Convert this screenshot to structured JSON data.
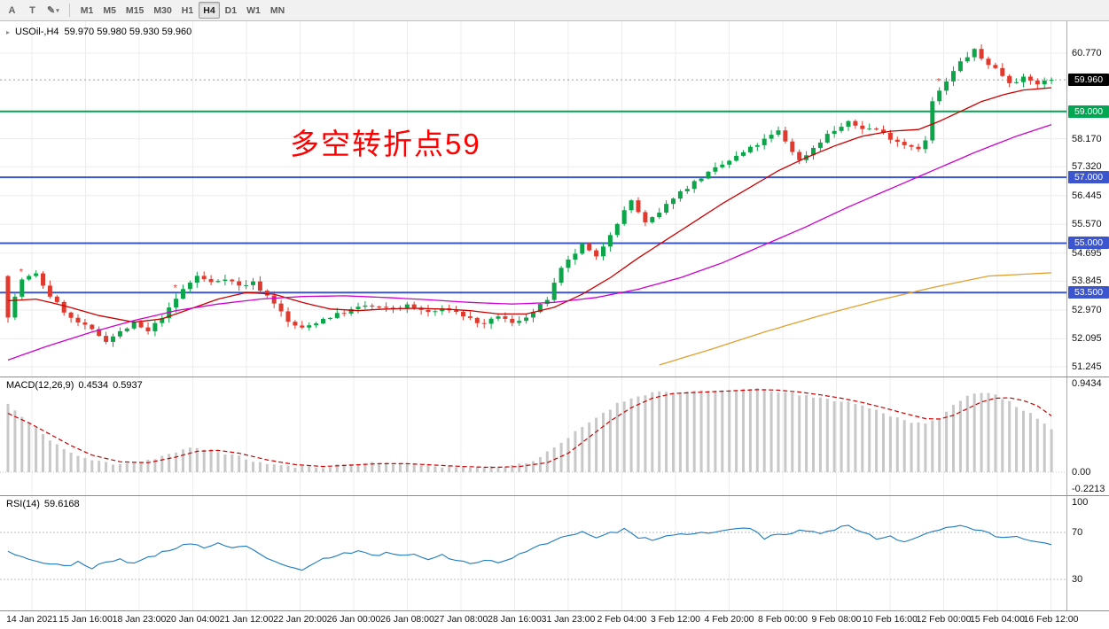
{
  "toolbar": {
    "tools": [
      {
        "label": "A",
        "name": "cursor-tool"
      },
      {
        "label": "T",
        "name": "text-tool"
      },
      {
        "label": "✎",
        "name": "draw-tool",
        "has_caret": true
      }
    ],
    "timeframes": [
      "M1",
      "M5",
      "M15",
      "M30",
      "H1",
      "H4",
      "D1",
      "W1",
      "MN"
    ],
    "active_timeframe": "H4"
  },
  "chart": {
    "symbol_period": "USOil-,H4",
    "ohlc": "59.970 59.980 59.930 59.960",
    "annotation": "多空转折点59",
    "hlines": [
      {
        "value": 59.0,
        "color": "#00a651",
        "label": "59.000"
      },
      {
        "value": 57.0,
        "color": "#3b55ce",
        "label": "57.000"
      },
      {
        "value": 55.0,
        "color": "#3b55ce",
        "label": "55.000"
      },
      {
        "value": 53.5,
        "color": "#3b55ce",
        "label": "53.500"
      }
    ],
    "current_price": {
      "value": 59.96,
      "label": "59.960"
    }
  },
  "price_axis": {
    "ticks": [
      {
        "label": "60.770",
        "value": 60.77
      },
      {
        "label": "58.170",
        "value": 58.17
      },
      {
        "label": "57.320",
        "value": 57.32
      },
      {
        "label": "56.445",
        "value": 56.445
      },
      {
        "label": "55.570",
        "value": 55.57
      },
      {
        "label": "54.695",
        "value": 54.695
      },
      {
        "label": "53.845",
        "value": 53.845
      },
      {
        "label": "52.970",
        "value": 52.97
      },
      {
        "label": "52.095",
        "value": 52.095
      },
      {
        "label": "51.245",
        "value": 51.245
      }
    ]
  },
  "macd": {
    "label": "MACD(12,26,9)",
    "value_main": "0.4534",
    "value_signal": "0.5937",
    "axis": [
      {
        "label": "0.9434",
        "value": 0.9434
      },
      {
        "label": "0.00",
        "value": 0
      },
      {
        "label": "-0.2213",
        "value": -0.2213
      }
    ]
  },
  "rsi": {
    "label": "RSI(14)",
    "value": "59.6168",
    "axis": [
      {
        "label": "100",
        "value": 100
      },
      {
        "label": "70",
        "value": 70
      },
      {
        "label": "30",
        "value": 30
      }
    ],
    "levels": [
      70,
      30
    ]
  },
  "time_axis": {
    "labels": [
      "14 Jan 2021",
      "15 Jan 16:00",
      "18 Jan 23:00",
      "20 Jan 04:00",
      "21 Jan 12:00",
      "22 Jan 20:00",
      "26 Jan 00:00",
      "26 Jan 08:00",
      "27 Jan 08:00",
      "28 Jan 16:00",
      "31 Jan 23:00",
      "2 Feb 04:00",
      "3 Feb 12:00",
      "4 Feb 20:00",
      "8 Feb 00:00",
      "9 Feb 08:00",
      "10 Feb 16:00",
      "12 Feb 00:00",
      "15 Feb 04:00",
      "16 Feb 12:00"
    ]
  },
  "colors": {
    "bull": "#0ca54a",
    "bear": "#e0392d",
    "ma_fast": "#cc0000",
    "ma_mid": "#cf00cf",
    "ma_slow": "#e0a030",
    "macd_hist": "#c8c8c8",
    "macd_signal": "#cc0000",
    "rsi_line": "#1c7ac1",
    "grid": "#ececec",
    "axis_box_current": "#000000",
    "marker": "#e0392d",
    "annotation": "#ff0000"
  },
  "chart_data": {
    "type": "candlestick",
    "symbol": "USOil",
    "period": "H4",
    "ohlc_current": {
      "open": 59.97,
      "high": 59.98,
      "low": 59.93,
      "close": 59.96
    },
    "price_range": [
      51.245,
      60.77
    ],
    "candle_count": 150,
    "open_start": 54.0,
    "close_anchors": [
      [
        0,
        52.8
      ],
      [
        2,
        53.9
      ],
      [
        4,
        54.05
      ],
      [
        6,
        53.4
      ],
      [
        9,
        52.7
      ],
      [
        12,
        52.35
      ],
      [
        14,
        52.05
      ],
      [
        16,
        52.3
      ],
      [
        18,
        52.55
      ],
      [
        20,
        52.3
      ],
      [
        23,
        53.0
      ],
      [
        25,
        53.6
      ],
      [
        27,
        54.0
      ],
      [
        29,
        53.8
      ],
      [
        31,
        53.95
      ],
      [
        33,
        53.7
      ],
      [
        35,
        53.8
      ],
      [
        38,
        53.2
      ],
      [
        40,
        52.6
      ],
      [
        42,
        52.4
      ],
      [
        45,
        52.7
      ],
      [
        48,
        52.9
      ],
      [
        51,
        53.1
      ],
      [
        54,
        53.0
      ],
      [
        57,
        53.1
      ],
      [
        60,
        52.9
      ],
      [
        63,
        53.0
      ],
      [
        66,
        52.7
      ],
      [
        68,
        52.5
      ],
      [
        70,
        52.8
      ],
      [
        72,
        52.55
      ],
      [
        75,
        52.9
      ],
      [
        77,
        53.3
      ],
      [
        79,
        54.2
      ],
      [
        82,
        54.95
      ],
      [
        84,
        54.55
      ],
      [
        86,
        55.3
      ],
      [
        89,
        56.3
      ],
      [
        91,
        55.6
      ],
      [
        93,
        55.9
      ],
      [
        95,
        56.4
      ],
      [
        99,
        57.0
      ],
      [
        103,
        57.5
      ],
      [
        107,
        58.0
      ],
      [
        110,
        58.4
      ],
      [
        113,
        57.5
      ],
      [
        115,
        57.9
      ],
      [
        117,
        58.3
      ],
      [
        120,
        58.65
      ],
      [
        122,
        58.5
      ],
      [
        124,
        58.45
      ],
      [
        126,
        58.2
      ],
      [
        128,
        58.0
      ],
      [
        130,
        57.9
      ],
      [
        131,
        58.1
      ],
      [
        132,
        59.3
      ],
      [
        134,
        59.9
      ],
      [
        136,
        60.5
      ],
      [
        138,
        60.85
      ],
      [
        139,
        60.6
      ],
      [
        141,
        60.3
      ],
      [
        143,
        59.9
      ],
      [
        145,
        60.0
      ],
      [
        147,
        59.85
      ],
      [
        149,
        59.96
      ]
    ],
    "ma_fast_anchors": [
      [
        0,
        53.25
      ],
      [
        4,
        53.3
      ],
      [
        8,
        53.1
      ],
      [
        13,
        52.8
      ],
      [
        18,
        52.6
      ],
      [
        22,
        52.7
      ],
      [
        26,
        53.0
      ],
      [
        30,
        53.3
      ],
      [
        34,
        53.5
      ],
      [
        38,
        53.45
      ],
      [
        42,
        53.2
      ],
      [
        46,
        53.0
      ],
      [
        50,
        52.95
      ],
      [
        54,
        53.0
      ],
      [
        58,
        53.02
      ],
      [
        62,
        53.0
      ],
      [
        66,
        52.95
      ],
      [
        70,
        52.85
      ],
      [
        74,
        52.85
      ],
      [
        78,
        53.05
      ],
      [
        82,
        53.45
      ],
      [
        86,
        53.95
      ],
      [
        90,
        54.55
      ],
      [
        94,
        55.1
      ],
      [
        98,
        55.65
      ],
      [
        102,
        56.2
      ],
      [
        106,
        56.7
      ],
      [
        110,
        57.2
      ],
      [
        114,
        57.6
      ],
      [
        118,
        57.95
      ],
      [
        122,
        58.25
      ],
      [
        126,
        58.4
      ],
      [
        130,
        58.45
      ],
      [
        133,
        58.7
      ],
      [
        136,
        59.0
      ],
      [
        139,
        59.3
      ],
      [
        142,
        59.5
      ],
      [
        145,
        59.65
      ],
      [
        149,
        59.72
      ]
    ],
    "ma_mid_anchors": [
      [
        0,
        51.45
      ],
      [
        6,
        51.9
      ],
      [
        12,
        52.3
      ],
      [
        18,
        52.65
      ],
      [
        24,
        52.95
      ],
      [
        30,
        53.15
      ],
      [
        36,
        53.3
      ],
      [
        42,
        53.38
      ],
      [
        48,
        53.4
      ],
      [
        54,
        53.35
      ],
      [
        60,
        53.28
      ],
      [
        66,
        53.2
      ],
      [
        72,
        53.15
      ],
      [
        78,
        53.2
      ],
      [
        84,
        53.35
      ],
      [
        90,
        53.6
      ],
      [
        96,
        53.95
      ],
      [
        102,
        54.4
      ],
      [
        108,
        54.95
      ],
      [
        114,
        55.5
      ],
      [
        120,
        56.1
      ],
      [
        126,
        56.65
      ],
      [
        132,
        57.2
      ],
      [
        138,
        57.75
      ],
      [
        144,
        58.25
      ],
      [
        149,
        58.6
      ]
    ],
    "ma_slow_anchors": [
      [
        93,
        51.3
      ],
      [
        100,
        51.75
      ],
      [
        108,
        52.3
      ],
      [
        116,
        52.8
      ],
      [
        124,
        53.25
      ],
      [
        132,
        53.65
      ],
      [
        140,
        54.0
      ],
      [
        149,
        54.1
      ]
    ],
    "markers": [
      {
        "index": 2
      },
      {
        "index": 24
      },
      {
        "index": 133
      }
    ],
    "macd_range": [
      -0.2213,
      0.9434
    ],
    "macd_hist_anchors": [
      [
        0,
        0.72
      ],
      [
        2,
        0.58
      ],
      [
        5,
        0.4
      ],
      [
        8,
        0.24
      ],
      [
        11,
        0.14
      ],
      [
        15,
        0.09
      ],
      [
        19,
        0.11
      ],
      [
        23,
        0.19
      ],
      [
        26,
        0.25
      ],
      [
        29,
        0.24
      ],
      [
        32,
        0.18
      ],
      [
        36,
        0.1
      ],
      [
        40,
        0.06
      ],
      [
        44,
        0.05
      ],
      [
        48,
        0.08
      ],
      [
        52,
        0.1
      ],
      [
        56,
        0.09
      ],
      [
        60,
        0.07
      ],
      [
        64,
        0.055
      ],
      [
        68,
        0.05
      ],
      [
        72,
        0.07
      ],
      [
        75,
        0.12
      ],
      [
        78,
        0.25
      ],
      [
        81,
        0.42
      ],
      [
        84,
        0.58
      ],
      [
        87,
        0.72
      ],
      [
        90,
        0.81
      ],
      [
        93,
        0.85
      ],
      [
        96,
        0.84
      ],
      [
        99,
        0.85
      ],
      [
        102,
        0.86
      ],
      [
        105,
        0.875
      ],
      [
        108,
        0.87
      ],
      [
        111,
        0.84
      ],
      [
        114,
        0.8
      ],
      [
        117,
        0.77
      ],
      [
        120,
        0.74
      ],
      [
        123,
        0.68
      ],
      [
        126,
        0.6
      ],
      [
        129,
        0.53
      ],
      [
        131,
        0.5
      ],
      [
        133,
        0.58
      ],
      [
        135,
        0.7
      ],
      [
        137,
        0.8
      ],
      [
        139,
        0.85
      ],
      [
        141,
        0.82
      ],
      [
        143,
        0.74
      ],
      [
        145,
        0.66
      ],
      [
        147,
        0.56
      ],
      [
        149,
        0.4534
      ]
    ],
    "macd_signal_anchors": [
      [
        0,
        0.62
      ],
      [
        3,
        0.52
      ],
      [
        6,
        0.4
      ],
      [
        9,
        0.28
      ],
      [
        12,
        0.18
      ],
      [
        16,
        0.11
      ],
      [
        20,
        0.1
      ],
      [
        24,
        0.16
      ],
      [
        27,
        0.22
      ],
      [
        30,
        0.23
      ],
      [
        33,
        0.2
      ],
      [
        37,
        0.13
      ],
      [
        41,
        0.08
      ],
      [
        45,
        0.06
      ],
      [
        49,
        0.075
      ],
      [
        53,
        0.09
      ],
      [
        57,
        0.09
      ],
      [
        61,
        0.075
      ],
      [
        65,
        0.06
      ],
      [
        69,
        0.05
      ],
      [
        73,
        0.06
      ],
      [
        77,
        0.1
      ],
      [
        80,
        0.2
      ],
      [
        83,
        0.37
      ],
      [
        86,
        0.54
      ],
      [
        89,
        0.68
      ],
      [
        92,
        0.78
      ],
      [
        95,
        0.83
      ],
      [
        98,
        0.84
      ],
      [
        101,
        0.85
      ],
      [
        104,
        0.86
      ],
      [
        107,
        0.87
      ],
      [
        110,
        0.865
      ],
      [
        113,
        0.845
      ],
      [
        116,
        0.815
      ],
      [
        119,
        0.78
      ],
      [
        122,
        0.735
      ],
      [
        125,
        0.68
      ],
      [
        128,
        0.62
      ],
      [
        131,
        0.565
      ],
      [
        133,
        0.56
      ],
      [
        135,
        0.6
      ],
      [
        137,
        0.67
      ],
      [
        139,
        0.74
      ],
      [
        141,
        0.78
      ],
      [
        143,
        0.785
      ],
      [
        145,
        0.755
      ],
      [
        147,
        0.7
      ],
      [
        149,
        0.5937
      ]
    ],
    "rsi_current": 59.6168,
    "rsi_anchors": [
      [
        0,
        55
      ],
      [
        2,
        49
      ],
      [
        4,
        46
      ],
      [
        6,
        43
      ],
      [
        8,
        41
      ],
      [
        10,
        45
      ],
      [
        12,
        40
      ],
      [
        14,
        44
      ],
      [
        16,
        47
      ],
      [
        18,
        44
      ],
      [
        20,
        48
      ],
      [
        22,
        53
      ],
      [
        24,
        57
      ],
      [
        26,
        61
      ],
      [
        28,
        57
      ],
      [
        30,
        60
      ],
      [
        32,
        56
      ],
      [
        34,
        58
      ],
      [
        36,
        51
      ],
      [
        38,
        46
      ],
      [
        40,
        40
      ],
      [
        42,
        37
      ],
      [
        44,
        45
      ],
      [
        46,
        49
      ],
      [
        48,
        52
      ],
      [
        50,
        54
      ],
      [
        52,
        50
      ],
      [
        54,
        53
      ],
      [
        56,
        50
      ],
      [
        58,
        52
      ],
      [
        60,
        48
      ],
      [
        62,
        51
      ],
      [
        64,
        46
      ],
      [
        66,
        43
      ],
      [
        68,
        47
      ],
      [
        70,
        44
      ],
      [
        72,
        49
      ],
      [
        74,
        53
      ],
      [
        76,
        59
      ],
      [
        78,
        64
      ],
      [
        80,
        67
      ],
      [
        82,
        71
      ],
      [
        84,
        66
      ],
      [
        86,
        69
      ],
      [
        88,
        73
      ],
      [
        90,
        66
      ],
      [
        92,
        63
      ],
      [
        94,
        66
      ],
      [
        96,
        68
      ],
      [
        98,
        70
      ],
      [
        100,
        69
      ],
      [
        102,
        71
      ],
      [
        104,
        73
      ],
      [
        106,
        74
      ],
      [
        108,
        65
      ],
      [
        110,
        68
      ],
      [
        112,
        70
      ],
      [
        114,
        72
      ],
      [
        116,
        70
      ],
      [
        118,
        73
      ],
      [
        120,
        76
      ],
      [
        122,
        70
      ],
      [
        124,
        65
      ],
      [
        126,
        67
      ],
      [
        128,
        62
      ],
      [
        130,
        66
      ],
      [
        132,
        72
      ],
      [
        134,
        74
      ],
      [
        136,
        76
      ],
      [
        138,
        73
      ],
      [
        140,
        69
      ],
      [
        142,
        65
      ],
      [
        144,
        67
      ],
      [
        146,
        63
      ],
      [
        148,
        61
      ],
      [
        149,
        59.6
      ]
    ]
  }
}
